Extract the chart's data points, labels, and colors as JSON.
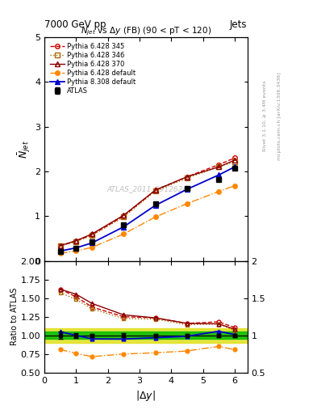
{
  "title_main": "7000 GeV pp",
  "title_right": "Jets",
  "plot_title": "$N_{jet}$ vs $\\Delta y$ (FB) (90 < pT < 120)",
  "xlabel": "$|\\Delta y|$",
  "ylabel_main": "$\\bar{N}_{jet}$",
  "ylabel_ratio": "Ratio to ATLAS",
  "watermark": "ATLAS_2011_S9126244",
  "right_label1": "Rivet 3.1.10, ≥ 3.4M events",
  "right_label2": "mcplots.cern.ch [arXiv:1306.3436]",
  "x_data": [
    0.5,
    1.0,
    1.5,
    2.5,
    3.5,
    4.5,
    5.5,
    6.0
  ],
  "atlas_y": [
    0.21,
    0.29,
    0.42,
    0.8,
    1.28,
    1.62,
    1.82,
    2.08
  ],
  "atlas_yerr": [
    0.01,
    0.01,
    0.01,
    0.02,
    0.03,
    0.03,
    0.04,
    0.05
  ],
  "p345_y": [
    0.34,
    0.44,
    0.58,
    1.0,
    1.58,
    1.88,
    2.15,
    2.3
  ],
  "p346_y": [
    0.33,
    0.43,
    0.57,
    0.98,
    1.56,
    1.85,
    2.1,
    2.22
  ],
  "p370_y": [
    0.34,
    0.45,
    0.6,
    1.02,
    1.58,
    1.88,
    2.1,
    2.25
  ],
  "pdef_y": [
    0.17,
    0.22,
    0.3,
    0.6,
    0.98,
    1.28,
    1.55,
    1.68
  ],
  "p8def_y": [
    0.22,
    0.29,
    0.4,
    0.76,
    1.24,
    1.6,
    1.92,
    2.1
  ],
  "ratio_band_inner": 0.05,
  "ratio_band_outer": 0.1,
  "color_atlas": "#000000",
  "color_p345": "#cc0000",
  "color_p346": "#aa6600",
  "color_p370": "#880000",
  "color_pdef": "#ff8800",
  "color_p8def": "#0000cc",
  "color_band_inner": "#00bb00",
  "color_band_outer": "#dddd00",
  "xlim": [
    0,
    6.4
  ],
  "ylim_main": [
    0.0,
    5.0
  ],
  "ylim_ratio": [
    0.5,
    2.0
  ],
  "figsize": [
    3.93,
    5.12
  ],
  "dpi": 100
}
